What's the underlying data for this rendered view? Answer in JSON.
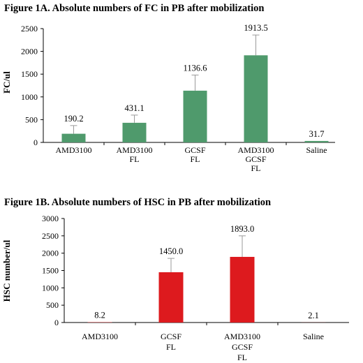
{
  "chart_data": [
    {
      "type": "bar",
      "title": "Figure 1A.  Absolute numbers of FC in PB after mobilization",
      "ylabel": "FC/ul",
      "xlabel": "",
      "ylim": [
        0,
        2500
      ],
      "yticks": [
        0,
        500,
        1000,
        1500,
        2000,
        2500
      ],
      "grid": false,
      "color": "#4f9a6c",
      "categories": [
        [
          "AMD3100"
        ],
        [
          "AMD3100",
          "FL"
        ],
        [
          "GCSF",
          "FL"
        ],
        [
          "AMD3100",
          "GCSF",
          "FL"
        ],
        [
          "Saline"
        ]
      ],
      "values": [
        190.2,
        431.1,
        1136.6,
        1913.5,
        31.7
      ],
      "data_labels": [
        "190.2",
        "431.1",
        "1136.6",
        "1913.5",
        "31.7"
      ],
      "error_upper": [
        370,
        600,
        1480,
        2360,
        31.7
      ]
    },
    {
      "type": "bar",
      "title": "Figure 1B.  Absolute numbers of HSC in PB after mobilization",
      "ylabel": "HSC number/ul",
      "xlabel": "",
      "ylim": [
        0,
        3000
      ],
      "yticks": [
        0,
        500,
        1000,
        1500,
        2000,
        2500,
        3000
      ],
      "grid": false,
      "color": "#dd1a1e",
      "categories": [
        [
          "AMD3100"
        ],
        [
          "GCSF",
          "FL"
        ],
        [
          "AMD3100",
          "GCSF",
          "FL"
        ],
        [
          "Saline"
        ]
      ],
      "values": [
        8.2,
        1450.0,
        1893.0,
        2.1
      ],
      "data_labels": [
        "8.2",
        "1450.0",
        "1893.0",
        "2.1"
      ],
      "error_upper": [
        8.2,
        1850,
        2500,
        2.1
      ]
    }
  ]
}
